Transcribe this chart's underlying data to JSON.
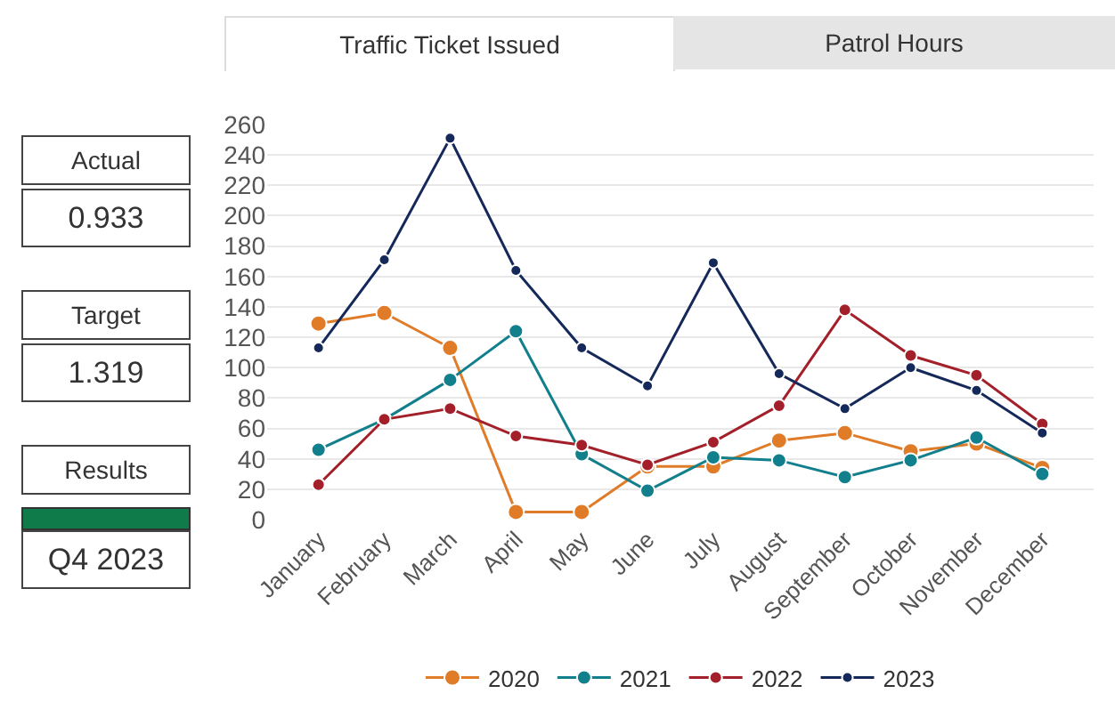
{
  "chart_data": [
    {
      "type": "other",
      "annotations": [
        "Actual",
        "0.933",
        "Target",
        "1.319",
        "Results",
        "Q4 2023"
      ]
    },
    {
      "type": "line",
      "title": "Traffic Ticket Issued",
      "annotations": [
        "Patrol Hours"
      ],
      "categories": [
        "January",
        "February",
        "March",
        "April",
        "May",
        "June",
        "July",
        "August",
        "September",
        "October",
        "November",
        "December"
      ],
      "series": [
        {
          "name": "2020",
          "color": "#e07b28",
          "values": [
            129,
            136,
            113,
            5,
            5,
            35,
            35,
            52,
            57,
            45,
            50,
            34
          ]
        },
        {
          "name": "2021",
          "color": "#127f8c",
          "values": [
            46,
            66,
            92,
            124,
            43,
            19,
            41,
            39,
            28,
            39,
            54,
            30
          ]
        },
        {
          "name": "2022",
          "color": "#a3202a",
          "values": [
            23,
            66,
            73,
            55,
            49,
            36,
            51,
            75,
            138,
            108,
            95,
            63
          ]
        },
        {
          "name": "2023",
          "color": "#14285a",
          "values": [
            113,
            171,
            251,
            164,
            113,
            88,
            169,
            96,
            73,
            100,
            85,
            57
          ]
        }
      ],
      "ylim": [
        0,
        260
      ],
      "yticks": [
        0,
        20,
        40,
        60,
        80,
        100,
        120,
        140,
        160,
        180,
        200,
        220,
        240,
        260
      ],
      "grid": "y",
      "legend": "bottom",
      "marker": "circle",
      "line_style": "solid"
    }
  ]
}
